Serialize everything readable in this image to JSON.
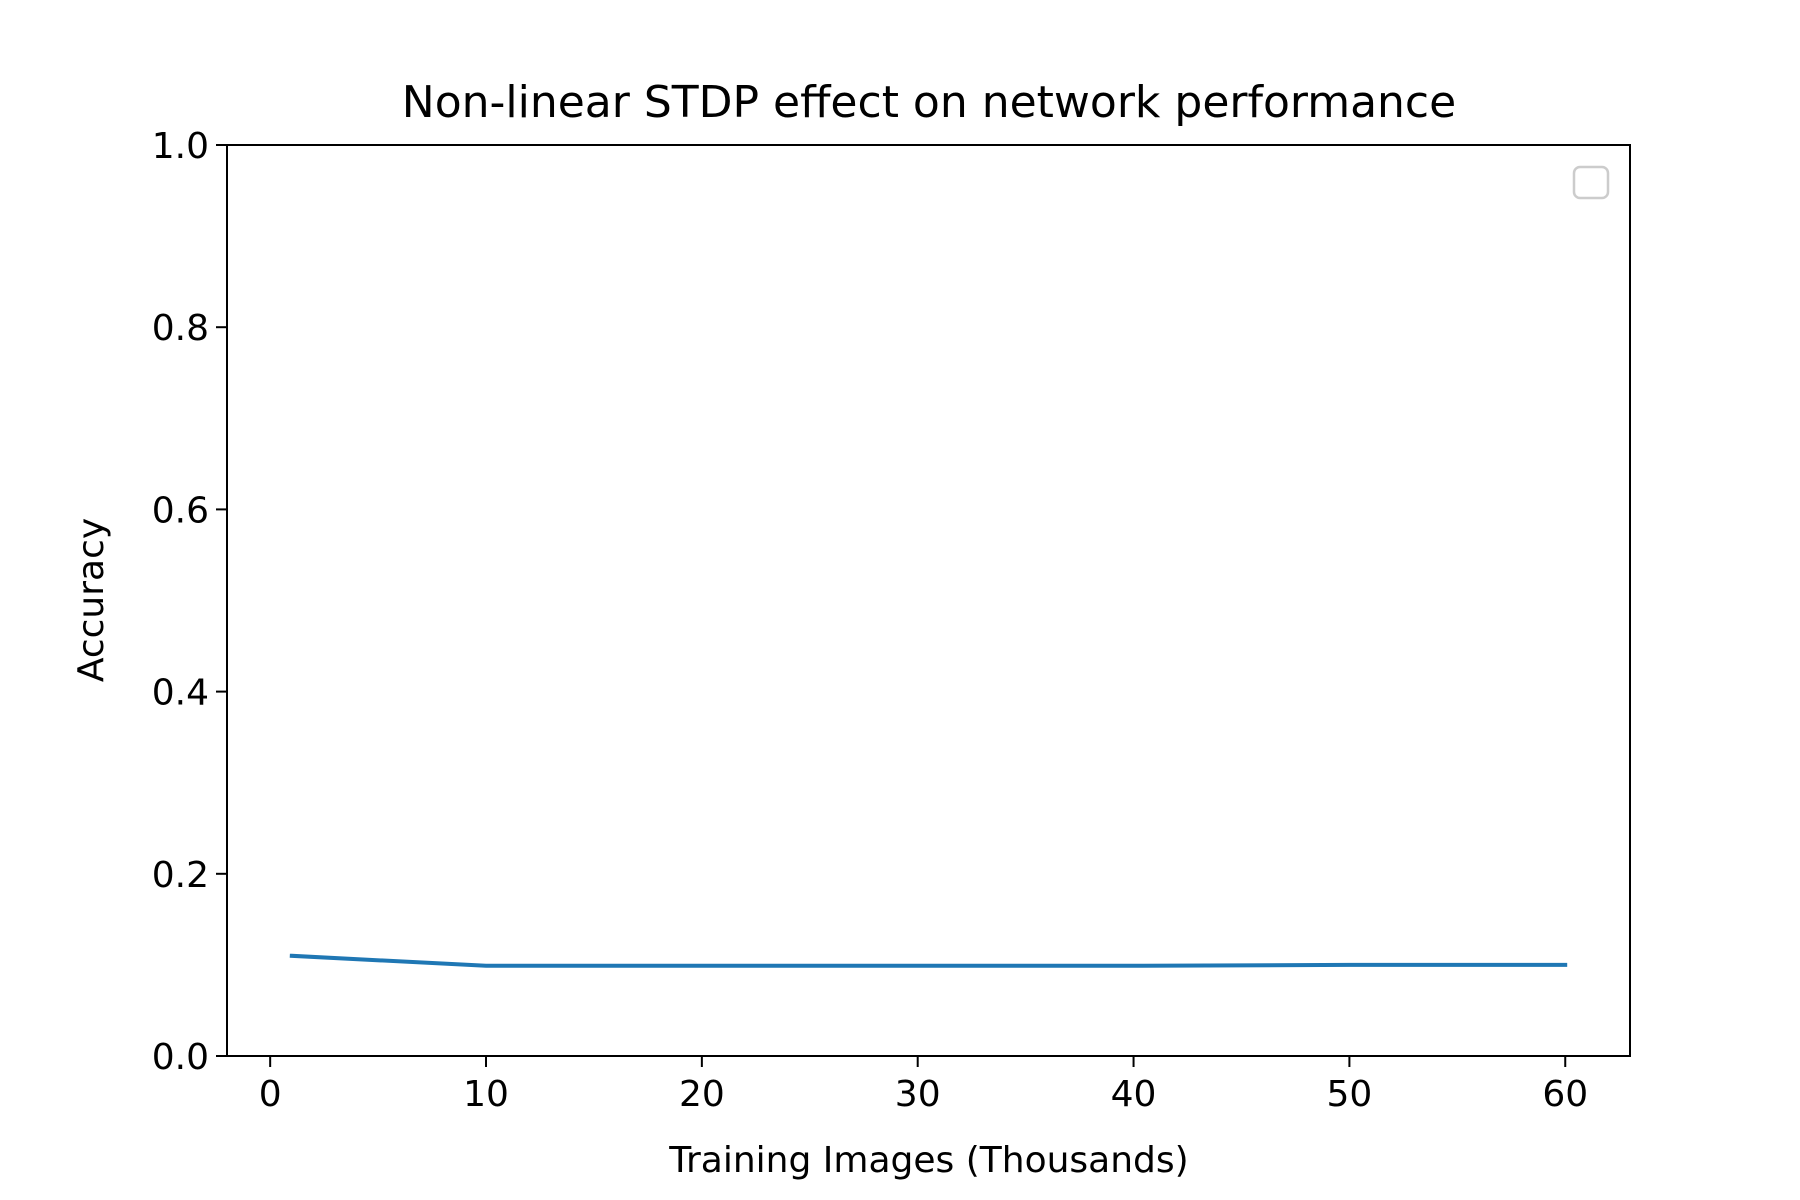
{
  "chart_data": {
    "type": "line",
    "title": "Non-linear STDP effect on network performance",
    "xlabel": "Training Images (Thousands)",
    "ylabel": "Accuracy",
    "xlim": [
      -2,
      63
    ],
    "ylim": [
      0.0,
      1.0
    ],
    "x_ticks": [
      0,
      10,
      20,
      30,
      40,
      50,
      60
    ],
    "y_ticks": [
      0.0,
      0.2,
      0.4,
      0.6,
      0.8,
      1.0
    ],
    "x_tick_labels": [
      "0",
      "10",
      "20",
      "30",
      "40",
      "50",
      "60"
    ],
    "y_tick_labels": [
      "0.0",
      "0.2",
      "0.4",
      "0.6",
      "0.8",
      "1.0"
    ],
    "grid": false,
    "legend": {
      "placement": "upper-right",
      "entries": []
    },
    "series": [
      {
        "color": "#1f77b4",
        "x": [
          1,
          10,
          20,
          30,
          40,
          50,
          60
        ],
        "y": [
          0.11,
          0.099,
          0.099,
          0.099,
          0.099,
          0.1,
          0.1
        ]
      }
    ]
  }
}
